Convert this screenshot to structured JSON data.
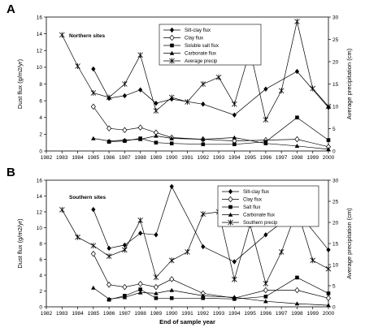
{
  "chart_data": [
    {
      "type": "line",
      "panel_letter": "A",
      "site_label": "Northern sites",
      "ylabel": "Dust flux (g/m2/yr)",
      "y2label": "Average precipitation (cm)",
      "xlim": [
        1982,
        2000
      ],
      "ylim": [
        0,
        16
      ],
      "y2lim": [
        0,
        30
      ],
      "x_ticks": [
        1982,
        1983,
        1984,
        1985,
        1986,
        1987,
        1988,
        1989,
        1990,
        1991,
        1992,
        1993,
        1994,
        1995,
        1996,
        1997,
        1998,
        1999,
        2000
      ],
      "y_ticks": [
        0,
        2,
        4,
        6,
        8,
        10,
        12,
        14,
        16
      ],
      "y2_ticks": [
        0,
        5,
        10,
        15,
        20,
        25,
        30
      ],
      "legend_position": "top-center",
      "series": [
        {
          "name": "Silt-clay flux",
          "marker": "diamond",
          "axis": "left",
          "x": [
            1985,
            1986,
            1987,
            1988,
            1989,
            1990,
            1992,
            1994,
            1996,
            1998,
            2000
          ],
          "y": [
            9.8,
            6.3,
            6.6,
            7.3,
            5.7,
            6.2,
            5.6,
            4.3,
            7.4,
            9.5,
            5.2
          ]
        },
        {
          "name": "Clay flux",
          "marker": "circle-open",
          "axis": "left",
          "x": [
            1985,
            1986,
            1987,
            1988,
            1989,
            1990,
            1992,
            1994,
            1996,
            1998,
            2000
          ],
          "y": [
            5.3,
            2.7,
            2.5,
            2.8,
            2.2,
            1.6,
            1.4,
            1.2,
            1.3,
            1.4,
            0.5
          ]
        },
        {
          "name": "Soluble salt flux",
          "marker": "square",
          "axis": "left",
          "x": [
            1986,
            1987,
            1988,
            1989,
            1990,
            1992,
            1994,
            1996,
            1998,
            2000
          ],
          "y": [
            1.1,
            1.2,
            1.5,
            1.0,
            0.9,
            0.8,
            0.8,
            1.1,
            4.0,
            1.3
          ]
        },
        {
          "name": "Carbonate flux",
          "marker": "triangle",
          "axis": "left",
          "x": [
            1985,
            1986,
            1987,
            1988,
            1989,
            1990,
            1992,
            1994,
            1996,
            1998,
            2000
          ],
          "y": [
            1.5,
            1.2,
            1.3,
            1.4,
            1.8,
            1.5,
            1.4,
            1.6,
            0.9,
            0.6,
            0.2
          ]
        },
        {
          "name": "Average precip",
          "marker": "asterisk",
          "axis": "right",
          "x": [
            1983,
            1984,
            1985,
            1986,
            1987,
            1988,
            1989,
            1990,
            1991,
            1992,
            1993,
            1994,
            1995,
            1996,
            1997,
            1998,
            1999,
            2000
          ],
          "y": [
            26,
            19,
            13,
            12,
            15,
            21.5,
            9,
            12,
            11,
            15,
            16.5,
            10.5,
            22.5,
            7,
            13.5,
            29,
            14,
            10
          ]
        }
      ]
    },
    {
      "type": "line",
      "panel_letter": "B",
      "site_label": "Southern sites",
      "ylabel": "Dust flux (g/m2/yr)",
      "y2label": "Average precipitation (cm)",
      "xlabel": "End of sample year",
      "xlim": [
        1982,
        2000
      ],
      "ylim": [
        0,
        16
      ],
      "y2lim": [
        0,
        30
      ],
      "x_ticks": [
        1982,
        1983,
        1984,
        1985,
        1986,
        1987,
        1988,
        1989,
        1990,
        1991,
        1992,
        1993,
        1994,
        1995,
        1996,
        1997,
        1998,
        1999,
        2000
      ],
      "y_ticks": [
        0,
        2,
        4,
        6,
        8,
        10,
        12,
        14,
        16
      ],
      "y2_ticks": [
        0,
        5,
        10,
        15,
        20,
        25,
        30
      ],
      "legend_position": "top-right",
      "series": [
        {
          "name": "Silt-clay flux",
          "marker": "diamond",
          "axis": "left",
          "x": [
            1985,
            1986,
            1987,
            1988,
            1989,
            1990,
            1992,
            1994,
            1996,
            1998,
            2000
          ],
          "y": [
            12.3,
            7.4,
            7.8,
            9.3,
            9.1,
            15.2,
            7.6,
            5.7,
            9.1,
            12.1,
            7.2
          ]
        },
        {
          "name": "Clay flux",
          "marker": "circle-open",
          "axis": "left",
          "x": [
            1985,
            1986,
            1987,
            1988,
            1989,
            1990,
            1992,
            1994,
            1996,
            1998,
            2000
          ],
          "y": [
            6.7,
            2.8,
            2.5,
            2.9,
            2.5,
            3.5,
            1.7,
            1.1,
            2.1,
            2.1,
            1.1
          ]
        },
        {
          "name": "Salt flux",
          "marker": "square",
          "axis": "left",
          "x": [
            1986,
            1987,
            1988,
            1989,
            1990,
            1992,
            1994,
            1996,
            1998,
            2000
          ],
          "y": [
            0.9,
            1.4,
            2.2,
            1.1,
            1.1,
            1.1,
            1.0,
            1.3,
            3.7,
            1.7
          ]
        },
        {
          "name": "Carbonate flux",
          "marker": "triangle",
          "axis": "left",
          "x": [
            1985,
            1986,
            1987,
            1988,
            1989,
            1990,
            1992,
            1994,
            1996,
            1998,
            2000
          ],
          "y": [
            2.4,
            1.0,
            1.2,
            1.8,
            1.7,
            2.1,
            1.4,
            1.2,
            0.7,
            0.4,
            0.2
          ]
        },
        {
          "name": "Southern precip",
          "marker": "asterisk",
          "axis": "right",
          "x": [
            1983,
            1984,
            1985,
            1986,
            1987,
            1988,
            1989,
            1990,
            1991,
            1992,
            1993,
            1994,
            1995,
            1996,
            1997,
            1998,
            1999,
            2000
          ],
          "y": [
            23,
            16.5,
            14.5,
            12,
            13.5,
            20.5,
            7,
            11,
            13,
            22,
            22.5,
            6.5,
            19.5,
            5.5,
            13,
            23,
            11,
            9
          ]
        }
      ]
    }
  ]
}
